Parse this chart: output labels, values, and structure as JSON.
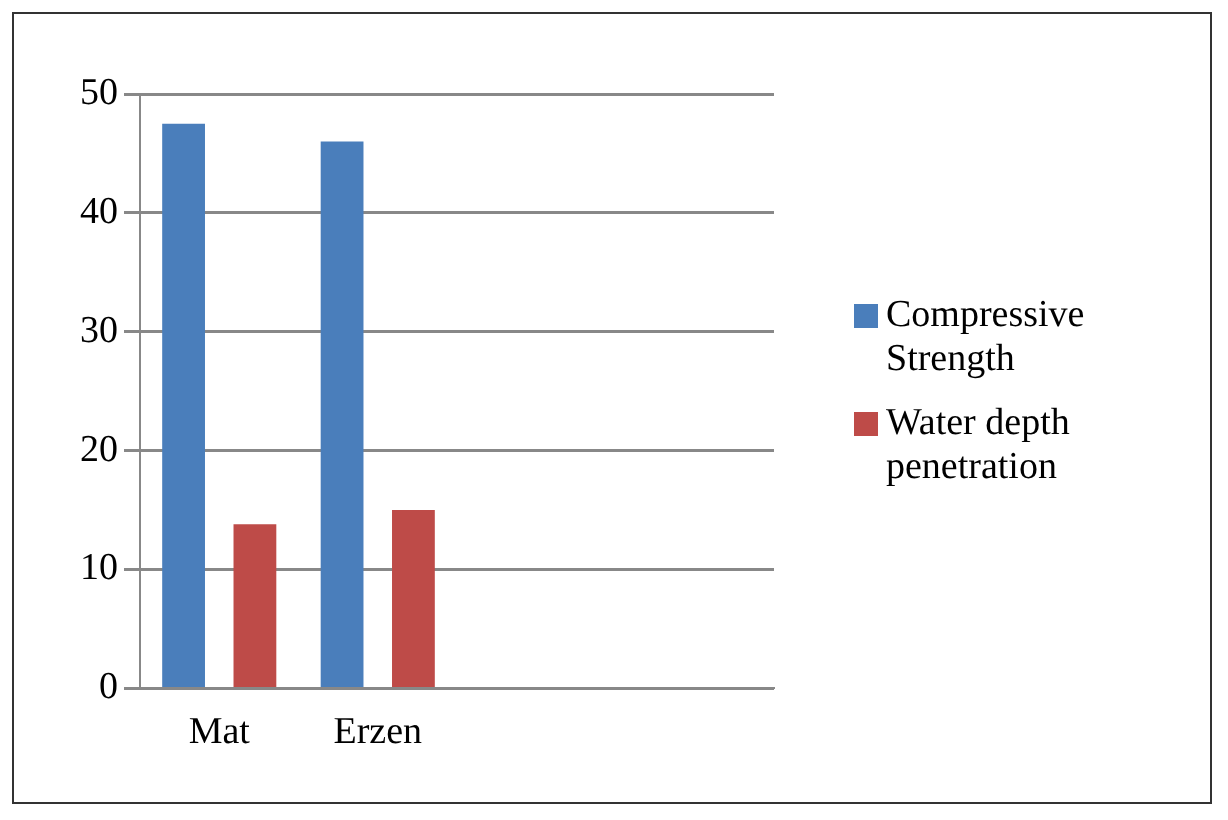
{
  "chart_data": {
    "type": "bar",
    "categories": [
      "Mat",
      "Erzen",
      null,
      null
    ],
    "series": [
      {
        "name": "Compressive Strength",
        "color": "#4a7ebb",
        "values": [
          47.5,
          46,
          null,
          null
        ]
      },
      {
        "name": "Water depth penetration",
        "color": "#be4b48",
        "values": [
          13.8,
          15,
          null,
          null
        ]
      }
    ],
    "ylim": [
      0,
      50
    ],
    "yticks": [
      0,
      10,
      20,
      30,
      40,
      50
    ],
    "grid": "y",
    "legend": "right"
  }
}
